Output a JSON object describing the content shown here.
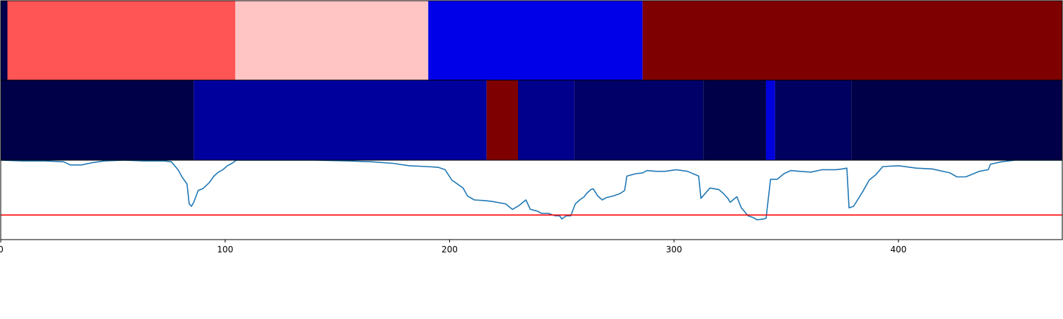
{
  "chart_data": [
    {
      "type": "heatmap",
      "panel": "segment-track-top",
      "xlim": [
        0,
        473
      ],
      "segments": [
        {
          "start": 0,
          "end": 3,
          "color": "#00004c"
        },
        {
          "start": 3,
          "end": 104.5,
          "color": "#ff5555"
        },
        {
          "start": 104.5,
          "end": 190.5,
          "color": "#ffc4c4"
        },
        {
          "start": 190.5,
          "end": 286,
          "color": "#0000e8"
        },
        {
          "start": 286,
          "end": 473,
          "color": "#7f0000"
        }
      ]
    },
    {
      "type": "heatmap",
      "panel": "segment-track-middle",
      "xlim": [
        0,
        473
      ],
      "segments": [
        {
          "start": 0,
          "end": 86,
          "color": "#000048"
        },
        {
          "start": 86,
          "end": 216.5,
          "color": "#00009c"
        },
        {
          "start": 216.5,
          "end": 230.5,
          "color": "#7f0000"
        },
        {
          "start": 230.5,
          "end": 255.5,
          "color": "#00008c"
        },
        {
          "start": 255.5,
          "end": 313,
          "color": "#000068"
        },
        {
          "start": 313,
          "end": 341,
          "color": "#000048"
        },
        {
          "start": 341,
          "end": 345,
          "color": "#0000dd"
        },
        {
          "start": 345,
          "end": 379,
          "color": "#000060"
        },
        {
          "start": 379,
          "end": 473,
          "color": "#000048"
        }
      ]
    },
    {
      "type": "line",
      "panel": "signal-line",
      "xlim": [
        0,
        473
      ],
      "ylim": [
        0,
        1
      ],
      "xticks": [
        0,
        100,
        200,
        300,
        400
      ],
      "series": [
        {
          "color": "#1f77b4",
          "points": [
            [
              0,
              1.0
            ],
            [
              10,
              0.99
            ],
            [
              20,
              0.99
            ],
            [
              28,
              0.98
            ],
            [
              31,
              0.94
            ],
            [
              36,
              0.94
            ],
            [
              41,
              0.97
            ],
            [
              46,
              0.99
            ],
            [
              55,
              1.0
            ],
            [
              64,
              0.99
            ],
            [
              73,
              0.99
            ],
            [
              76,
              0.98
            ],
            [
              79,
              0.88
            ],
            [
              81,
              0.78
            ],
            [
              83,
              0.7
            ],
            [
              84,
              0.45
            ],
            [
              85,
              0.42
            ],
            [
              86,
              0.47
            ],
            [
              88,
              0.62
            ],
            [
              90,
              0.64
            ],
            [
              93,
              0.72
            ],
            [
              95,
              0.8
            ],
            [
              97,
              0.85
            ],
            [
              99,
              0.88
            ],
            [
              101,
              0.93
            ],
            [
              103,
              0.96
            ],
            [
              105,
              1.0
            ],
            [
              120,
              1.0
            ],
            [
              140,
              1.0
            ],
            [
              155,
              0.99
            ],
            [
              165,
              0.98
            ],
            [
              175,
              0.96
            ],
            [
              182,
              0.93
            ],
            [
              190,
              0.92
            ],
            [
              195,
              0.91
            ],
            [
              198,
              0.88
            ],
            [
              201,
              0.75
            ],
            [
              206,
              0.65
            ],
            [
              208,
              0.55
            ],
            [
              211,
              0.5
            ],
            [
              216,
              0.49
            ],
            [
              219,
              0.48
            ],
            [
              225,
              0.45
            ],
            [
              228,
              0.38
            ],
            [
              231,
              0.43
            ],
            [
              234,
              0.5
            ],
            [
              236,
              0.38
            ],
            [
              239,
              0.36
            ],
            [
              241,
              0.33
            ],
            [
              244,
              0.33
            ],
            [
              247,
              0.3
            ],
            [
              249,
              0.3
            ],
            [
              250,
              0.26
            ],
            [
              252,
              0.3
            ],
            [
              254,
              0.3
            ],
            [
              256,
              0.45
            ],
            [
              258,
              0.5
            ],
            [
              260,
              0.54
            ],
            [
              261,
              0.58
            ],
            [
              263,
              0.63
            ],
            [
              264,
              0.64
            ],
            [
              266,
              0.55
            ],
            [
              268,
              0.5
            ],
            [
              270,
              0.53
            ],
            [
              273,
              0.55
            ],
            [
              276,
              0.58
            ],
            [
              278,
              0.62
            ],
            [
              279,
              0.8
            ],
            [
              283,
              0.83
            ],
            [
              286,
              0.84
            ],
            [
              288,
              0.87
            ],
            [
              292,
              0.86
            ],
            [
              296,
              0.86
            ],
            [
              301,
              0.88
            ],
            [
              306,
              0.86
            ],
            [
              311,
              0.8
            ],
            [
              312,
              0.52
            ],
            [
              316,
              0.65
            ],
            [
              320,
              0.63
            ],
            [
              322,
              0.58
            ],
            [
              324,
              0.52
            ],
            [
              325,
              0.47
            ],
            [
              328,
              0.54
            ],
            [
              330,
              0.4
            ],
            [
              333,
              0.3
            ],
            [
              335,
              0.28
            ],
            [
              337,
              0.25
            ],
            [
              340,
              0.26
            ],
            [
              341,
              0.27
            ],
            [
              343,
              0.76
            ],
            [
              346,
              0.76
            ],
            [
              349,
              0.83
            ],
            [
              352,
              0.87
            ],
            [
              356,
              0.86
            ],
            [
              361,
              0.85
            ],
            [
              366,
              0.88
            ],
            [
              372,
              0.88
            ],
            [
              375,
              0.89
            ],
            [
              377,
              0.9
            ],
            [
              378,
              0.4
            ],
            [
              380,
              0.42
            ],
            [
              384,
              0.6
            ],
            [
              387,
              0.75
            ],
            [
              390,
              0.82
            ],
            [
              393,
              0.92
            ],
            [
              400,
              0.93
            ],
            [
              408,
              0.9
            ],
            [
              415,
              0.89
            ],
            [
              423,
              0.84
            ],
            [
              426,
              0.79
            ],
            [
              430,
              0.79
            ],
            [
              436,
              0.86
            ],
            [
              440,
              0.88
            ],
            [
              441,
              0.95
            ],
            [
              446,
              0.98
            ],
            [
              452,
              1.0
            ],
            [
              460,
              1.0
            ],
            [
              467,
              1.0
            ],
            [
              473,
              1.0
            ]
          ]
        },
        {
          "color": "#ff0000",
          "points": [
            [
              0,
              0.31
            ],
            [
              473,
              0.31
            ]
          ]
        }
      ]
    }
  ]
}
